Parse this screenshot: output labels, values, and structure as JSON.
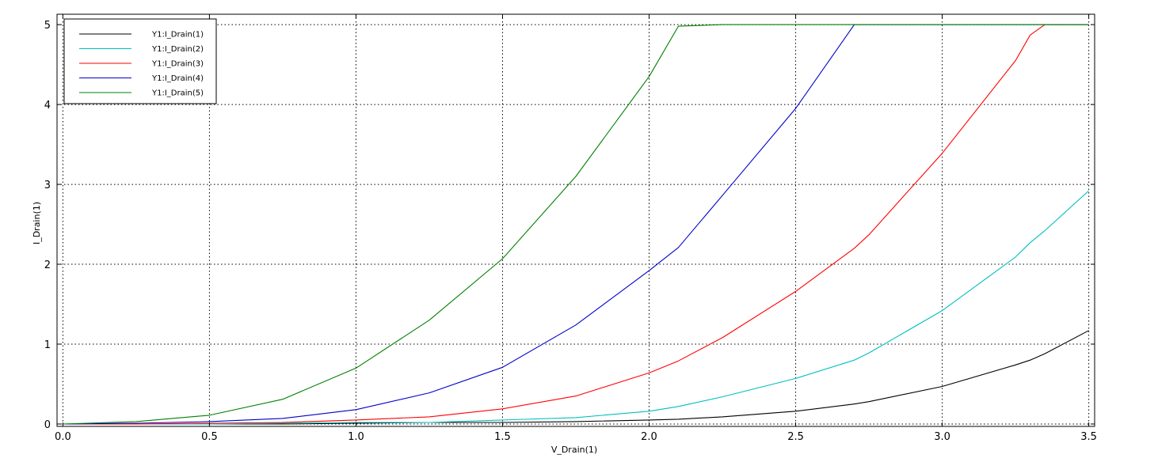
{
  "chart_data": {
    "type": "line",
    "title": "",
    "xlabel": "V_Drain(1)",
    "ylabel": "I_Drain(1)",
    "xlim": [
      -0.02,
      3.52
    ],
    "ylim": [
      -0.03,
      5.13
    ],
    "xticks": [
      0.0,
      0.5,
      1.0,
      1.5,
      2.0,
      2.5,
      3.0,
      3.5
    ],
    "yticks": [
      0,
      1,
      2,
      3,
      4,
      5
    ],
    "xtick_labels": [
      "0.0",
      "0.5",
      "1.0",
      "1.5",
      "2.0",
      "2.5",
      "3.0",
      "3.5"
    ],
    "ytick_labels": [
      "0",
      "1",
      "2",
      "3",
      "4",
      "5"
    ],
    "grid": true,
    "grid_style": "dotted",
    "legend_position": "top-left",
    "x": [
      0.0,
      0.25,
      0.5,
      0.75,
      1.0,
      1.25,
      1.5,
      1.75,
      2.0,
      2.1,
      2.25,
      2.5,
      2.7,
      2.75,
      3.0,
      3.25,
      3.3,
      3.35,
      3.5
    ],
    "series": [
      {
        "name": "Y1:I_Drain(1)",
        "color": "#000000",
        "values": [
          0.0,
          0.0,
          0.0,
          0.0,
          0.01,
          0.02,
          0.02,
          0.03,
          0.05,
          0.06,
          0.09,
          0.16,
          0.25,
          0.28,
          0.47,
          0.74,
          0.8,
          0.88,
          1.17
        ]
      },
      {
        "name": "Y1:I_Drain(2)",
        "color": "#00bfbf",
        "values": [
          0.0,
          0.0,
          0.0,
          0.01,
          0.02,
          0.02,
          0.05,
          0.08,
          0.16,
          0.22,
          0.34,
          0.57,
          0.8,
          0.89,
          1.42,
          2.09,
          2.27,
          2.42,
          2.92
        ]
      },
      {
        "name": "Y1:I_Drain(3)",
        "color": "#ff0000",
        "values": [
          0.0,
          0.0,
          0.01,
          0.02,
          0.05,
          0.09,
          0.19,
          0.35,
          0.64,
          0.79,
          1.08,
          1.66,
          2.2,
          2.37,
          3.39,
          4.55,
          4.87,
          5.0,
          5.0
        ]
      },
      {
        "name": "Y1:I_Drain(4)",
        "color": "#0000cc",
        "values": [
          0.0,
          0.01,
          0.03,
          0.07,
          0.18,
          0.39,
          0.71,
          1.24,
          1.92,
          2.21,
          2.86,
          3.95,
          5.0,
          5.0,
          5.0,
          5.0,
          5.0,
          5.0,
          5.0
        ]
      },
      {
        "name": "Y1:I_Drain(5)",
        "color": "#007f00",
        "values": [
          0.0,
          0.03,
          0.11,
          0.31,
          0.7,
          1.3,
          2.07,
          3.1,
          4.35,
          4.98,
          5.0,
          5.0,
          5.0,
          5.0,
          5.0,
          5.0,
          5.0,
          5.0,
          5.0
        ]
      }
    ]
  }
}
